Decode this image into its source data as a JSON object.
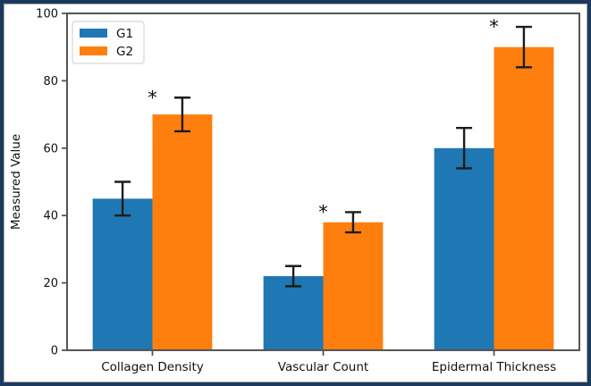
{
  "figure": {
    "border_color": "#1b3a5e",
    "background": "#ffffff"
  },
  "chart_data": {
    "type": "bar",
    "title": "",
    "xlabel": "",
    "ylabel": "Measured Value",
    "categories": [
      "Collagen Density",
      "Vascular Count",
      "Epidermal Thickness"
    ],
    "series": [
      {
        "name": "G1",
        "color": "#1f77b4",
        "values": [
          45,
          22,
          60
        ],
        "errors": [
          5,
          3,
          6
        ]
      },
      {
        "name": "G2",
        "color": "#ff7f0e",
        "values": [
          70,
          38,
          90
        ],
        "errors": [
          5,
          3,
          6
        ]
      }
    ],
    "significance_marker": "*",
    "significant_categories": [
      0,
      1,
      2
    ],
    "significance_on_series": "G2",
    "ylim": [
      0,
      100
    ],
    "yticks": [
      0,
      20,
      40,
      60,
      80,
      100
    ],
    "bar_width": 0.35,
    "grid": false,
    "legend": {
      "position": "upper left",
      "entries": [
        "G1",
        "G2"
      ]
    },
    "error_bar_color": "#1c1c1c",
    "axis_color": "#555555",
    "text_color": "#111111"
  }
}
